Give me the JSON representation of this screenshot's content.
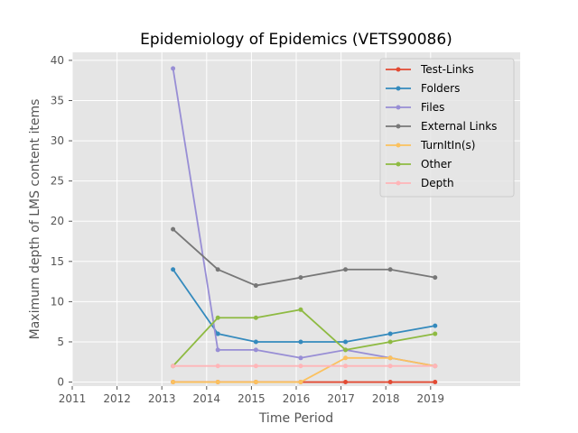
{
  "chart_data": {
    "type": "line",
    "title": "Epidemiology of Epidemics (VETS90086)",
    "xlabel": "Time Period",
    "ylabel": "Maximum depth of LMS content items",
    "xlim": [
      2011,
      2021
    ],
    "ylim": [
      -0.5,
      41
    ],
    "xticks": [
      "2011",
      "2012",
      "2013",
      "2014",
      "2015",
      "2016",
      "2017",
      "2018",
      "2019"
    ],
    "yticks": [
      "0",
      "5",
      "10",
      "15",
      "20",
      "25",
      "30",
      "35",
      "40"
    ],
    "x": [
      2013.25,
      2014.25,
      2015.1,
      2016.1,
      2017.1,
      2018.1,
      2019.1
    ],
    "series": [
      {
        "name": "Test-Links",
        "color": "#E24A33",
        "values": [
          0,
          0,
          0,
          0,
          0,
          0,
          0
        ]
      },
      {
        "name": "Folders",
        "color": "#348ABD",
        "values": [
          14,
          6,
          5,
          5,
          5,
          6,
          7
        ]
      },
      {
        "name": "Files",
        "color": "#988ED5",
        "values": [
          39,
          4,
          4,
          3,
          4,
          3,
          2
        ]
      },
      {
        "name": "External Links",
        "color": "#777777",
        "values": [
          19,
          14,
          12,
          13,
          14,
          14,
          13
        ]
      },
      {
        "name": "TurnItIn(s)",
        "color": "#FBC15E",
        "values": [
          0,
          0,
          0,
          0,
          3,
          3,
          2
        ]
      },
      {
        "name": "Other",
        "color": "#8EBA42",
        "values": [
          2,
          8,
          8,
          9,
          4,
          5,
          6
        ]
      },
      {
        "name": "Depth",
        "color": "#FFB5B8",
        "values": [
          2,
          2,
          2,
          2,
          2,
          2,
          2
        ]
      }
    ],
    "grid": true,
    "legend_position": "top-right"
  }
}
